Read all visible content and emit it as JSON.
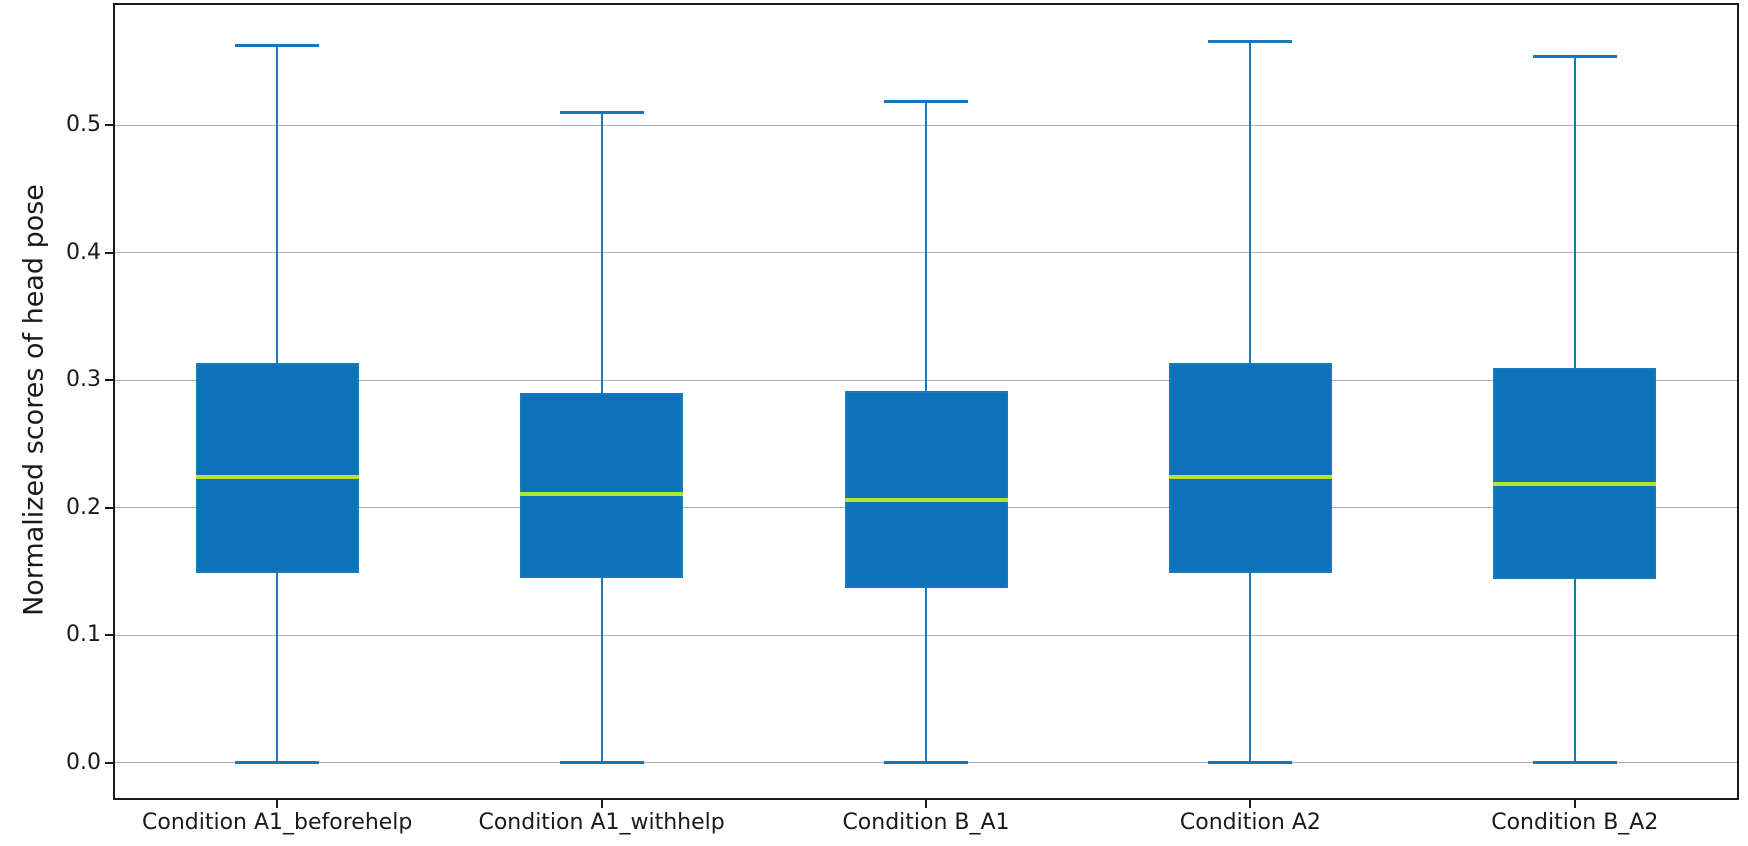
{
  "figure": {
    "background": "#ffffff"
  },
  "chart_data": {
    "type": "box",
    "title": "",
    "xlabel": "",
    "ylabel": "Normalized scores of head pose",
    "categories": [
      "Condition A1_beforehelp",
      "Condition A1_withhelp",
      "Condition B_A1",
      "Condition A2",
      "Condition B_A2"
    ],
    "series": [
      {
        "name": "Condition A1_beforehelp",
        "whisker_low": 0.0,
        "q1": 0.149,
        "median": 0.224,
        "q3": 0.314,
        "whisker_high": 0.563
      },
      {
        "name": "Condition A1_withhelp",
        "whisker_low": 0.0,
        "q1": 0.145,
        "median": 0.211,
        "q3": 0.29,
        "whisker_high": 0.51
      },
      {
        "name": "Condition B_A1",
        "whisker_low": 0.0,
        "q1": 0.137,
        "median": 0.206,
        "q3": 0.292,
        "whisker_high": 0.519
      },
      {
        "name": "Condition A2",
        "whisker_low": 0.0,
        "q1": 0.149,
        "median": 0.224,
        "q3": 0.314,
        "whisker_high": 0.566
      },
      {
        "name": "Condition B_A2",
        "whisker_low": 0.0,
        "q1": 0.144,
        "median": 0.219,
        "q3": 0.31,
        "whisker_high": 0.554
      }
    ],
    "yticks": [
      0.0,
      0.1,
      0.2,
      0.3,
      0.4,
      0.5
    ],
    "ytick_labels": [
      "0.0",
      "0.1",
      "0.2",
      "0.3",
      "0.4",
      "0.5"
    ],
    "ylim": [
      -0.0275,
      0.5945
    ],
    "grid": true,
    "legend_position": "none",
    "colors": {
      "box_fill": "#0d72b8",
      "box_edge": "#1878bc",
      "whisker": "#1878bc",
      "median": "#b4e330",
      "grid": "#b0b0b0",
      "spine": "#1a1a1a",
      "text": "#1a1a1a"
    }
  }
}
